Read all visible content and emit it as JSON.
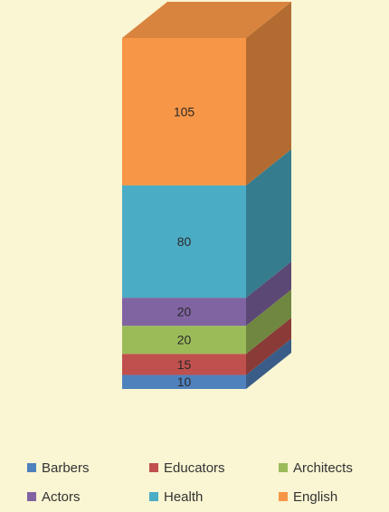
{
  "chart_data": {
    "type": "bar",
    "stacked": true,
    "three_d": true,
    "categories": [
      ""
    ],
    "series": [
      {
        "name": "Barbers",
        "values": [
          10
        ],
        "color": "#4f81bd"
      },
      {
        "name": "Educators",
        "values": [
          15
        ],
        "color": "#c0504d"
      },
      {
        "name": "Architects",
        "values": [
          20
        ],
        "color": "#9bbb59"
      },
      {
        "name": "Actors",
        "values": [
          20
        ],
        "color": "#8064a2"
      },
      {
        "name": "Health",
        "values": [
          80
        ],
        "color": "#4bacc6"
      },
      {
        "name": "English",
        "values": [
          105
        ],
        "color": "#f79646"
      }
    ],
    "data_labels": [
      "10",
      "15",
      "20",
      "20",
      "80",
      "105"
    ],
    "title": "",
    "xlabel": "",
    "ylabel": "",
    "grid": false,
    "legend": "bottom"
  }
}
